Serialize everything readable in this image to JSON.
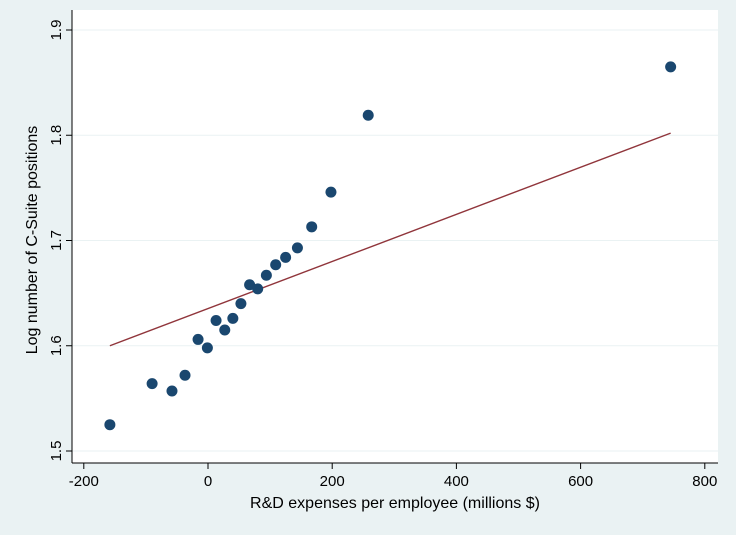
{
  "chart_data": {
    "type": "scatter",
    "xlabel": "R&D expenses per employee (millions $)",
    "ylabel": "Log number of C-Suite positions",
    "xlim": [
      -200,
      800
    ],
    "ylim": [
      1.5,
      1.9
    ],
    "x_ticks": [
      -200,
      0,
      200,
      400,
      600,
      800
    ],
    "y_ticks": [
      1.5,
      1.6,
      1.7,
      1.8,
      1.9
    ],
    "x_tick_labels": [
      "-200",
      "0",
      "200",
      "400",
      "600",
      "800"
    ],
    "y_tick_labels": [
      "1.5",
      "1.6",
      "1.7",
      "1.8",
      "1.9"
    ],
    "grid": "horizontal",
    "colors": {
      "points": "#1a476f",
      "fit_line": "#90353b",
      "plot_bg": "#ffffff",
      "outer_bg": "#eaf2f3",
      "grid": "#eaf2f3"
    },
    "series": [
      {
        "type": "scatter",
        "points": [
          {
            "x": -158,
            "y": 1.525
          },
          {
            "x": -90,
            "y": 1.564
          },
          {
            "x": -58,
            "y": 1.557
          },
          {
            "x": -37,
            "y": 1.572
          },
          {
            "x": -16,
            "y": 1.606
          },
          {
            "x": -1,
            "y": 1.598
          },
          {
            "x": 13,
            "y": 1.624
          },
          {
            "x": 27,
            "y": 1.615
          },
          {
            "x": 40,
            "y": 1.626
          },
          {
            "x": 53,
            "y": 1.64
          },
          {
            "x": 67,
            "y": 1.658
          },
          {
            "x": 80,
            "y": 1.654
          },
          {
            "x": 94,
            "y": 1.667
          },
          {
            "x": 109,
            "y": 1.677
          },
          {
            "x": 125,
            "y": 1.684
          },
          {
            "x": 144,
            "y": 1.693
          },
          {
            "x": 167,
            "y": 1.713
          },
          {
            "x": 198,
            "y": 1.746
          },
          {
            "x": 258,
            "y": 1.819
          },
          {
            "x": 745,
            "y": 1.865
          }
        ]
      },
      {
        "type": "line",
        "points": [
          {
            "x": -158,
            "y": 1.6
          },
          {
            "x": 745,
            "y": 1.802
          }
        ]
      }
    ]
  }
}
